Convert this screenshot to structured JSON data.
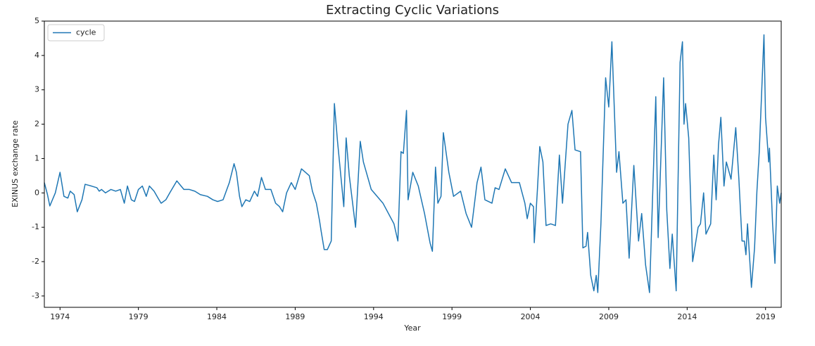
{
  "chart_data": {
    "type": "line",
    "title": "Extracting Cyclic Variations",
    "x_label": "Year",
    "y_label": "EXINUS exchange rate",
    "x": [
      1973.0,
      1973.2,
      1973.35,
      1973.7,
      1974.0,
      1974.25,
      1974.5,
      1974.65,
      1974.9,
      1975.1,
      1975.4,
      1975.6,
      1976.0,
      1976.35,
      1976.5,
      1976.65,
      1976.9,
      1977.25,
      1977.55,
      1977.85,
      1978.1,
      1978.3,
      1978.55,
      1978.75,
      1979.0,
      1979.25,
      1979.5,
      1979.7,
      1980.0,
      1980.25,
      1980.45,
      1980.75,
      1981.0,
      1981.45,
      1981.9,
      1982.25,
      1982.6,
      1982.95,
      1983.4,
      1983.75,
      1984.05,
      1984.4,
      1984.8,
      1985.1,
      1985.25,
      1985.45,
      1985.6,
      1985.85,
      1986.1,
      1986.4,
      1986.6,
      1986.85,
      1987.1,
      1987.45,
      1987.75,
      1988.0,
      1988.2,
      1988.45,
      1988.75,
      1989.0,
      1989.4,
      1989.65,
      1989.9,
      1990.1,
      1990.35,
      1990.55,
      1990.65,
      1990.85,
      1991.05,
      1991.3,
      1991.5,
      1991.7,
      1992.1,
      1992.25,
      1992.45,
      1992.85,
      1993.15,
      1993.35,
      1993.85,
      1994.6,
      1995.3,
      1995.55,
      1995.75,
      1995.9,
      1996.1,
      1996.2,
      1996.5,
      1996.85,
      1997.25,
      1997.6,
      1997.75,
      1997.95,
      1998.1,
      1998.3,
      1998.45,
      1998.8,
      1999.1,
      1999.55,
      1999.9,
      2000.25,
      2000.6,
      2000.85,
      2001.1,
      2001.55,
      2001.75,
      2002.0,
      2002.4,
      2002.8,
      2003.3,
      2003.65,
      2003.8,
      2004.0,
      2004.2,
      2004.25,
      2004.45,
      2004.6,
      2004.8,
      2005.0,
      2005.3,
      2005.6,
      2005.85,
      2006.05,
      2006.4,
      2006.65,
      2006.85,
      2007.2,
      2007.35,
      2007.55,
      2007.65,
      2007.85,
      2008.05,
      2008.2,
      2008.3,
      2008.5,
      2008.8,
      2009.0,
      2009.2,
      2009.5,
      2009.65,
      2009.9,
      2010.1,
      2010.3,
      2010.6,
      2010.9,
      2011.1,
      2011.35,
      2011.6,
      2012.0,
      2012.15,
      2012.5,
      2012.7,
      2012.9,
      2013.05,
      2013.3,
      2013.55,
      2013.7,
      2013.8,
      2013.9,
      2014.1,
      2014.35,
      2014.7,
      2014.85,
      2015.05,
      2015.2,
      2015.5,
      2015.7,
      2015.85,
      2016.0,
      2016.15,
      2016.35,
      2016.5,
      2016.8,
      2017.1,
      2017.3,
      2017.5,
      2017.65,
      2017.75,
      2017.85,
      2018.1,
      2018.3,
      2018.45,
      2018.6,
      2018.9,
      2019.0,
      2019.2,
      2019.25,
      2019.45,
      2019.6,
      2019.75,
      2019.9,
      2020.0
    ],
    "series": [
      {
        "name": "cycle",
        "color": "#1f77b4",
        "values": [
          0.3,
          -0.05,
          -0.38,
          0.0,
          0.6,
          -0.1,
          -0.15,
          0.05,
          -0.05,
          -0.55,
          -0.2,
          0.25,
          0.2,
          0.15,
          0.05,
          0.1,
          0.0,
          0.1,
          0.05,
          0.1,
          -0.3,
          0.2,
          -0.2,
          -0.25,
          0.1,
          0.2,
          -0.1,
          0.2,
          0.05,
          -0.15,
          -0.3,
          -0.2,
          0.0,
          0.35,
          0.1,
          0.1,
          0.05,
          -0.05,
          -0.1,
          -0.2,
          -0.25,
          -0.2,
          0.3,
          0.85,
          0.6,
          -0.1,
          -0.4,
          -0.2,
          -0.25,
          0.05,
          -0.1,
          0.45,
          0.1,
          0.1,
          -0.3,
          -0.4,
          -0.55,
          0.0,
          0.3,
          0.1,
          0.7,
          0.6,
          0.5,
          0.05,
          -0.3,
          -0.8,
          -1.1,
          -1.65,
          -1.65,
          -1.4,
          2.6,
          1.5,
          -0.4,
          1.6,
          0.5,
          -1.0,
          1.5,
          0.9,
          0.1,
          -0.3,
          -0.9,
          -1.4,
          1.2,
          1.15,
          2.4,
          -0.2,
          0.6,
          0.2,
          -0.6,
          -1.45,
          -1.7,
          0.75,
          -0.3,
          -0.1,
          1.75,
          0.6,
          -0.1,
          0.05,
          -0.6,
          -1.0,
          0.3,
          0.75,
          -0.2,
          -0.3,
          0.15,
          0.1,
          0.7,
          0.3,
          0.3,
          -0.3,
          -0.75,
          -0.3,
          -0.4,
          -1.45,
          0.1,
          1.35,
          0.9,
          -0.95,
          -0.9,
          -0.95,
          1.1,
          -0.3,
          2.0,
          2.4,
          1.25,
          1.2,
          -1.6,
          -1.55,
          -1.15,
          -2.4,
          -2.85,
          -2.4,
          -2.9,
          -0.9,
          3.35,
          2.5,
          4.4,
          0.6,
          1.2,
          -0.3,
          -0.2,
          -1.9,
          0.8,
          -1.4,
          -0.6,
          -2.1,
          -2.9,
          2.8,
          -1.3,
          3.35,
          -0.5,
          -2.2,
          -1.2,
          -2.85,
          3.8,
          4.4,
          2.0,
          2.6,
          1.6,
          -2.0,
          -1.0,
          -0.9,
          0.0,
          -1.2,
          -0.9,
          1.1,
          -0.2,
          1.4,
          2.2,
          0.2,
          0.9,
          0.4,
          1.9,
          0.4,
          -1.4,
          -1.4,
          -1.8,
          -0.9,
          -2.75,
          -1.6,
          0.05,
          1.2,
          4.6,
          2.2,
          0.9,
          1.3,
          -0.9,
          -2.05,
          0.2,
          -0.3,
          0.0
        ]
      }
    ],
    "xlim": [
      1973.0,
      2020.0
    ],
    "ylim": [
      -3.33,
      5
    ],
    "xticks": [
      1974,
      1979,
      1984,
      1989,
      1994,
      1999,
      2004,
      2009,
      2014,
      2019
    ],
    "yticks": [
      -3,
      -2,
      -1,
      0,
      1,
      2,
      3,
      4,
      5
    ],
    "legend": "upper left"
  }
}
